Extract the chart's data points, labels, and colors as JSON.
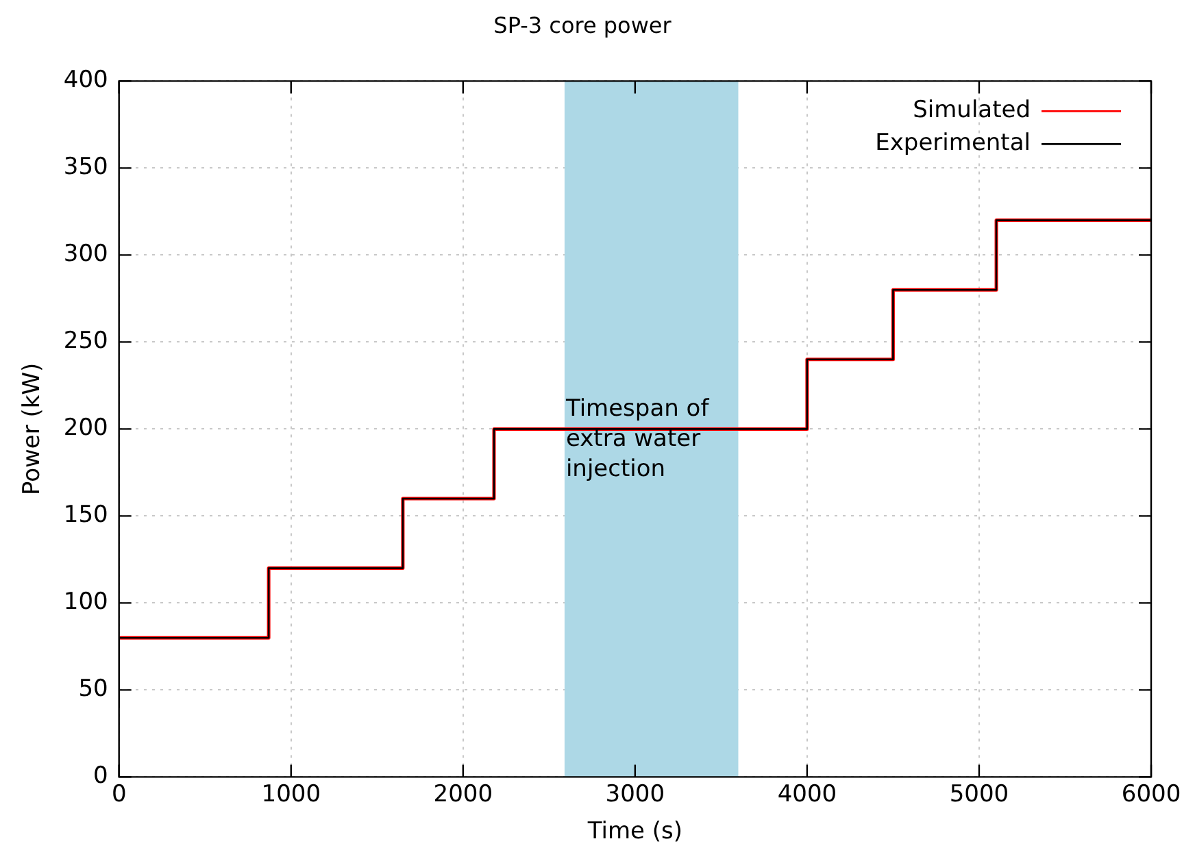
{
  "chart_data": {
    "type": "step",
    "title": "SP-3 core power",
    "xlabel": "Time (s)",
    "ylabel": "Power (kW)",
    "xlim": [
      0,
      6000
    ],
    "xticks": [
      0,
      1000,
      2000,
      3000,
      4000,
      5000,
      6000
    ],
    "ylim": [
      0,
      400
    ],
    "yticks": [
      0,
      50,
      100,
      150,
      200,
      250,
      300,
      350,
      400
    ],
    "grid": true,
    "legend": "top right",
    "bands": [
      {
        "axis": "x",
        "from": 2590,
        "to": 3600,
        "label": "Timespan of extra water injection",
        "color": "#add8e6"
      }
    ],
    "series": [
      {
        "name": "Simulated",
        "color": "#ff0000",
        "x": [
          0,
          870,
          1650,
          2180,
          4000,
          4500,
          5100,
          6000
        ],
        "values": [
          80,
          120,
          160,
          200,
          240,
          280,
          320,
          320
        ]
      },
      {
        "name": "Experimental",
        "color": "#000000",
        "x": [
          0,
          0,
          870,
          1650,
          2180,
          4000,
          4500,
          5100,
          6000
        ],
        "values": [
          40,
          80,
          120,
          160,
          200,
          240,
          280,
          320,
          320
        ]
      }
    ]
  }
}
